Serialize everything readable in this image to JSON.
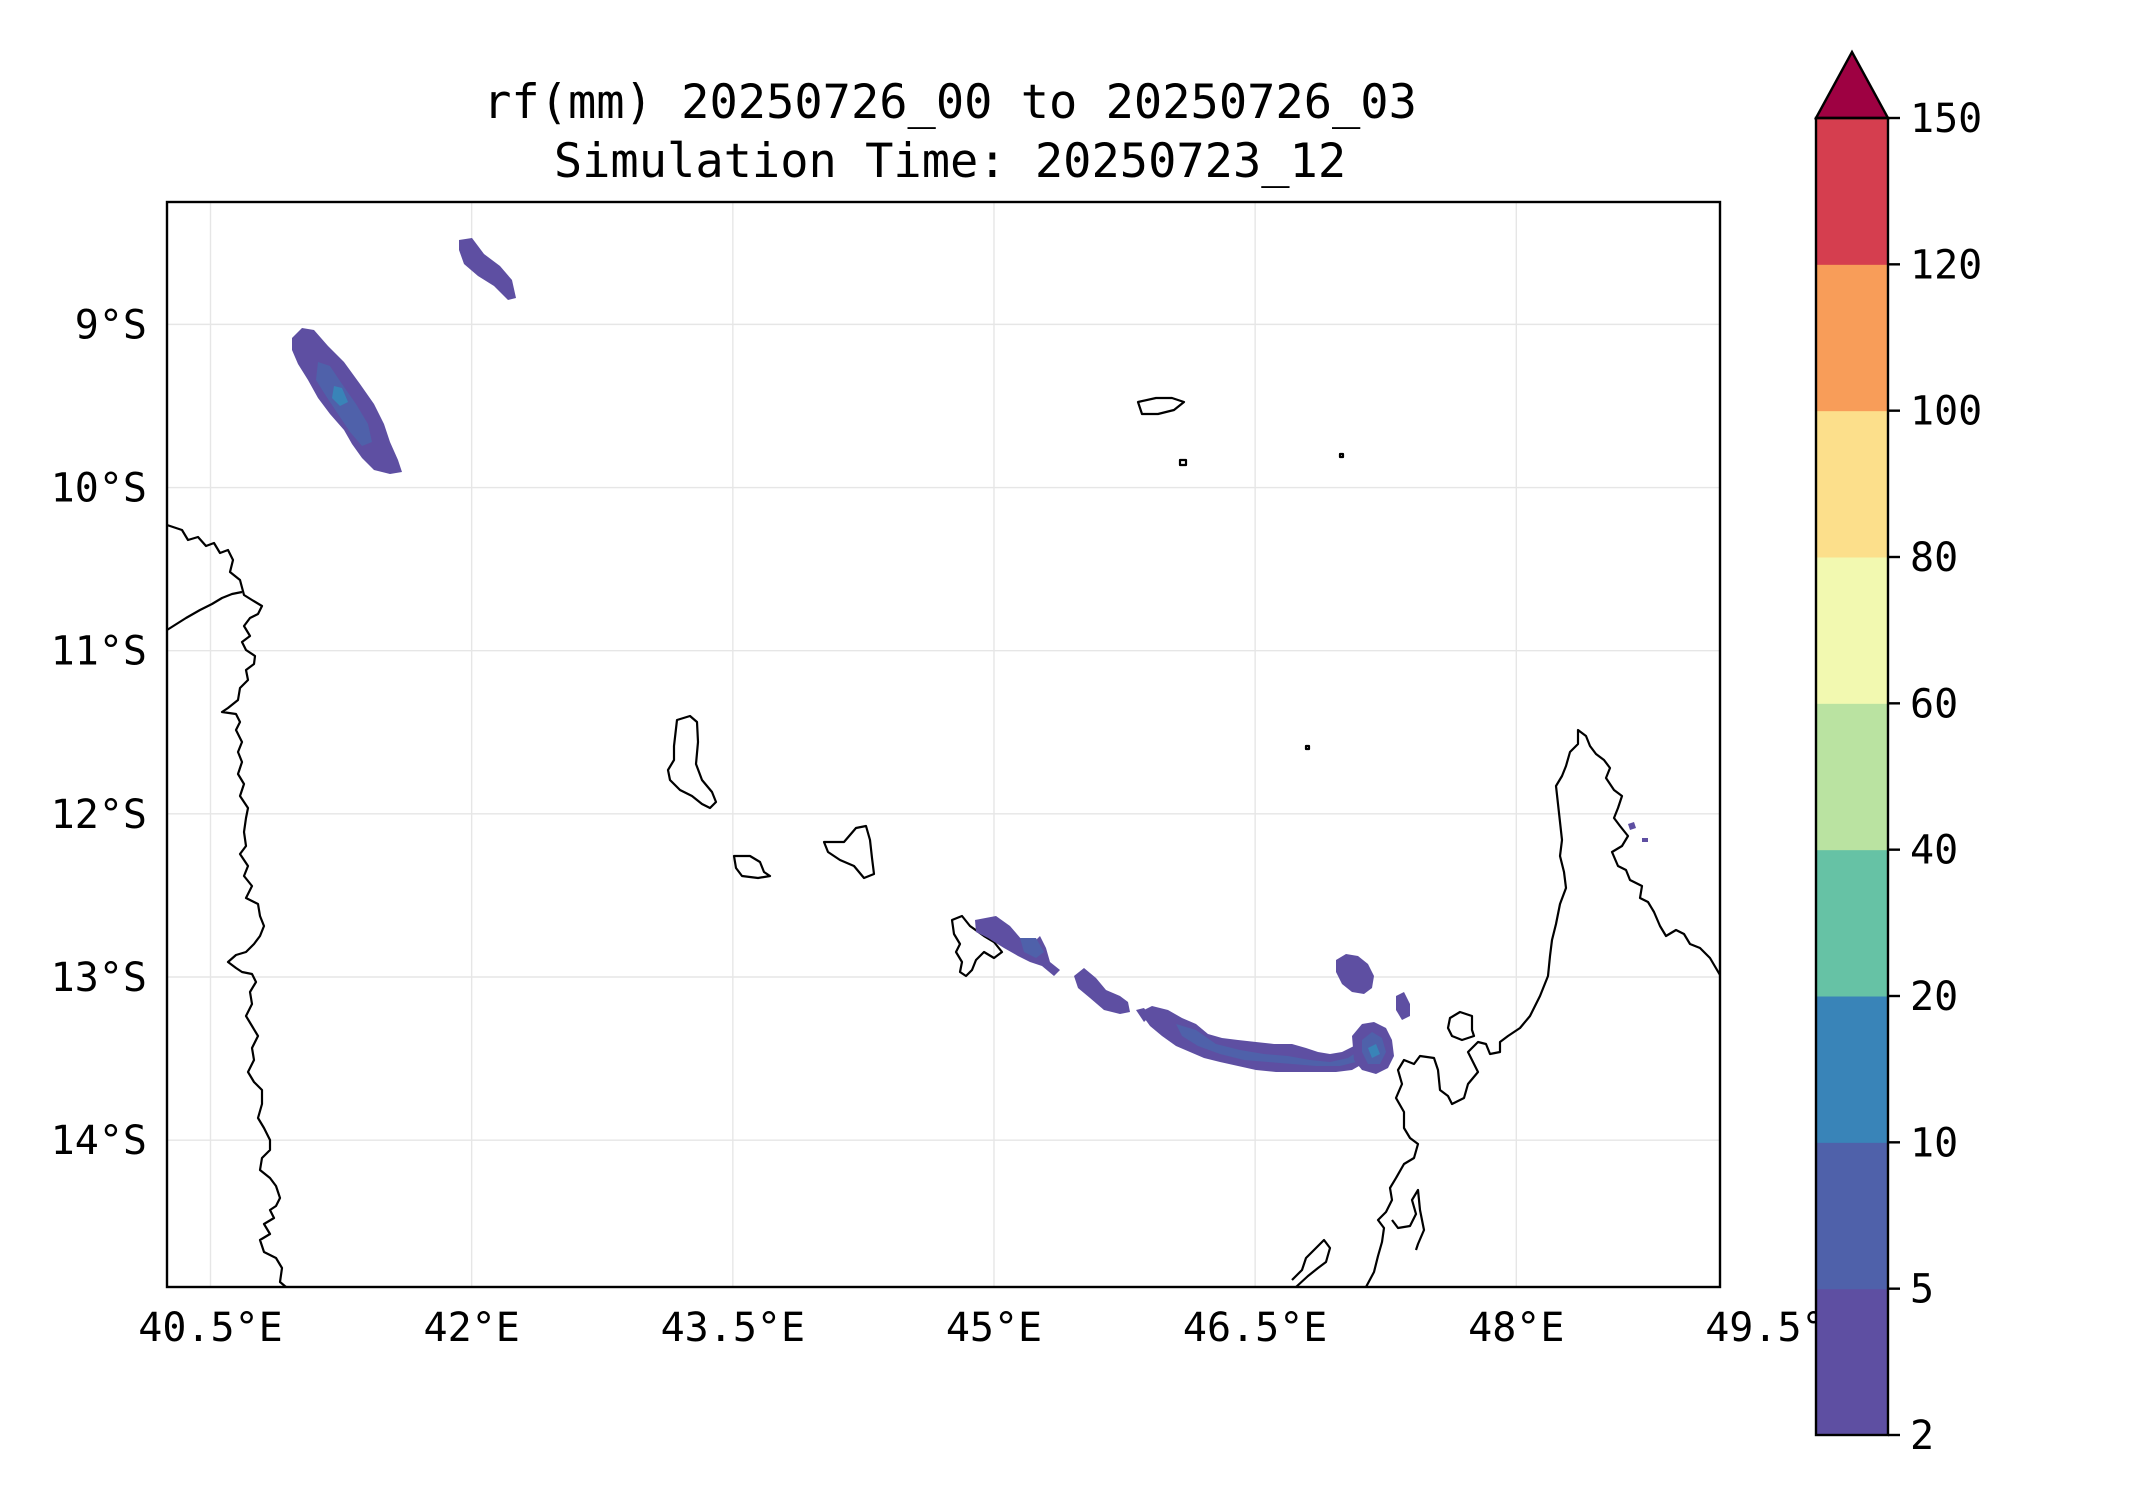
{
  "title": {
    "line1": "rf(mm) 20250726_00 to 20250726_03",
    "line2": "Simulation Time: 20250723_12"
  },
  "map": {
    "lon_range": [
      40.25,
      49.17
    ],
    "lat_range": [
      -14.9,
      -8.25
    ],
    "grid": true,
    "x_ticks": [
      {
        "value": 40.5,
        "label": "40.5°E"
      },
      {
        "value": 42.0,
        "label": "42°E"
      },
      {
        "value": 43.5,
        "label": "43.5°E"
      },
      {
        "value": 45.0,
        "label": "45°E"
      },
      {
        "value": 46.5,
        "label": "46.5°E"
      },
      {
        "value": 48.0,
        "label": "48°E"
      },
      {
        "value": 49.5,
        "label": "49.5°E"
      }
    ],
    "y_ticks": [
      {
        "value": -9,
        "label": "9°S"
      },
      {
        "value": -10,
        "label": "10°S"
      },
      {
        "value": -11,
        "label": "11°S"
      },
      {
        "value": -12,
        "label": "12°S"
      },
      {
        "value": -13,
        "label": "13°S"
      },
      {
        "value": -14,
        "label": "14°S"
      }
    ],
    "coastline_color": "#000000",
    "grid_color": "#e6e6e6"
  },
  "rainfall_cells": [
    {
      "name": "north-cell-small",
      "lon": 42.1,
      "lat": -8.45,
      "max_mm": 5
    },
    {
      "name": "north-cell-elongated",
      "lon": 41.1,
      "lat": -9.4,
      "max_mm": 10
    },
    {
      "name": "comoros-band",
      "lon": 46.5,
      "lat": -13.4,
      "max_mm": 10
    },
    {
      "name": "band-east-cell",
      "lon": 47.9,
      "lat": -13.5,
      "max_mm": 10
    },
    {
      "name": "isolated-cell",
      "lon": 47.85,
      "lat": -13.0,
      "max_mm": 5
    }
  ],
  "colorbar": {
    "label_orientation": "vertical-right",
    "extend": "max",
    "levels": [
      2,
      5,
      10,
      20,
      40,
      60,
      80,
      100,
      120,
      150
    ],
    "tick_labels": [
      "2",
      "5",
      "10",
      "20",
      "40",
      "60",
      "80",
      "100",
      "120",
      "150"
    ],
    "colors": [
      "#5e4fa2",
      "#4f61aa",
      "#3984b8",
      "#66c2a5",
      "#bae3a1",
      "#f2f9b0",
      "#fcdf8b",
      "#f89d59",
      "#d53e4f"
    ],
    "over_color": "#9e0142"
  }
}
